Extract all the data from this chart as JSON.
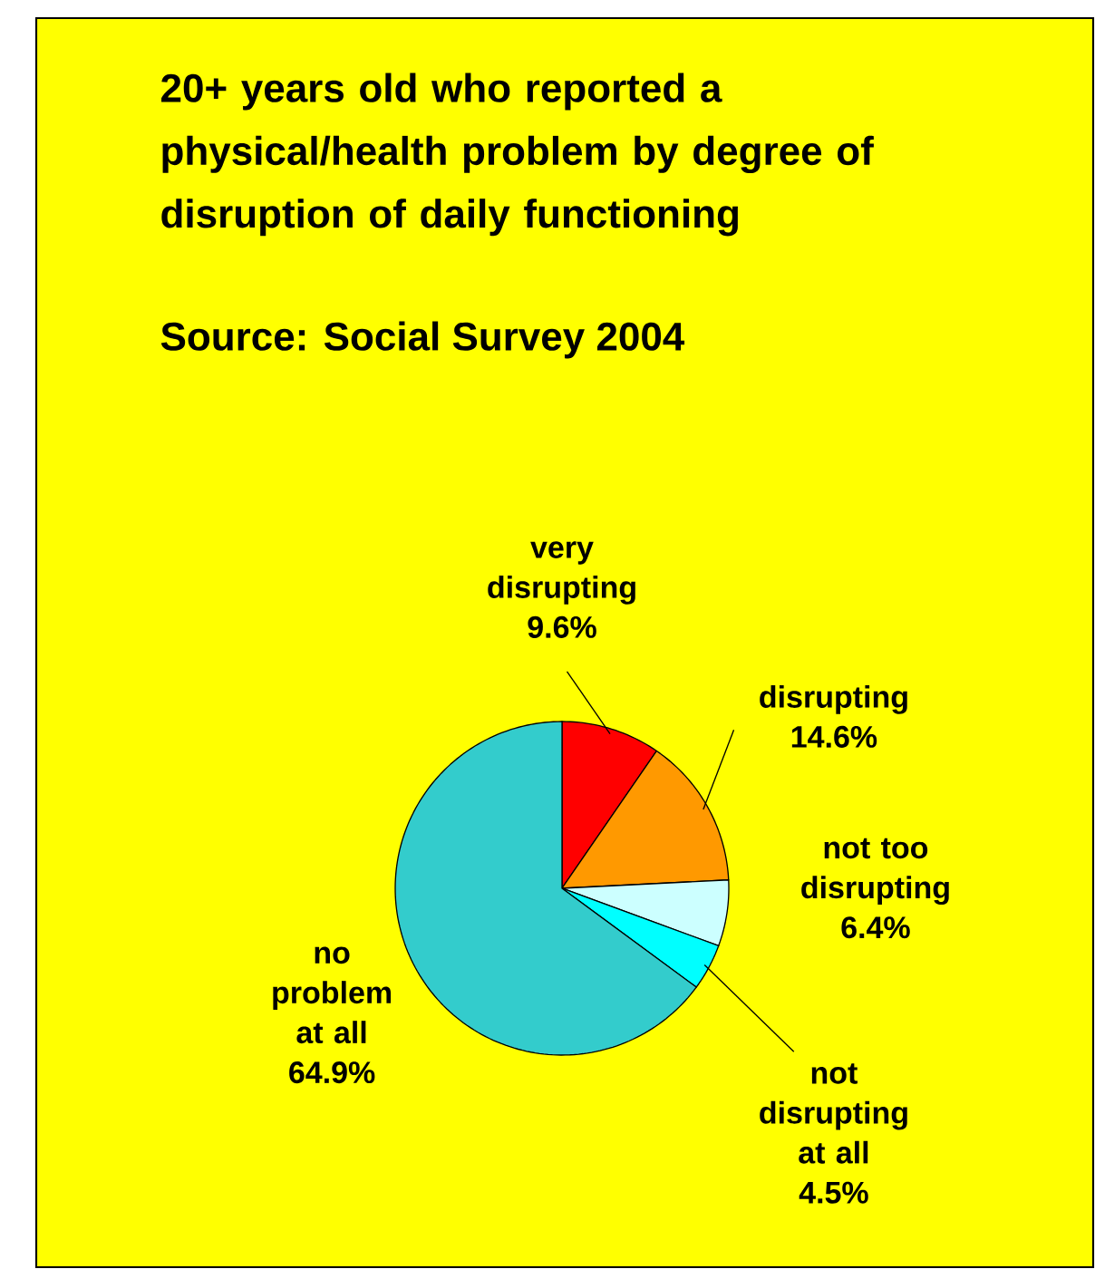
{
  "chart_data": {
    "type": "pie",
    "title": "20+ years old who reported a physical/health problem by degree of disruption of daily functioning",
    "annotations": [
      "Source: Social Survey 2004"
    ],
    "categories": [
      "very disrupting",
      "disrupting",
      "not too disrupting",
      "not disrupting at all",
      "no problem at all"
    ],
    "values": [
      9.6,
      14.6,
      6.4,
      4.5,
      64.9
    ],
    "value_labels": [
      "9.6%",
      "14.6%",
      "6.4%",
      "4.5%",
      "64.9%"
    ],
    "colors": [
      "#ff0000",
      "#ff9900",
      "#ccffff",
      "#00ffff",
      "#33cccc"
    ]
  }
}
